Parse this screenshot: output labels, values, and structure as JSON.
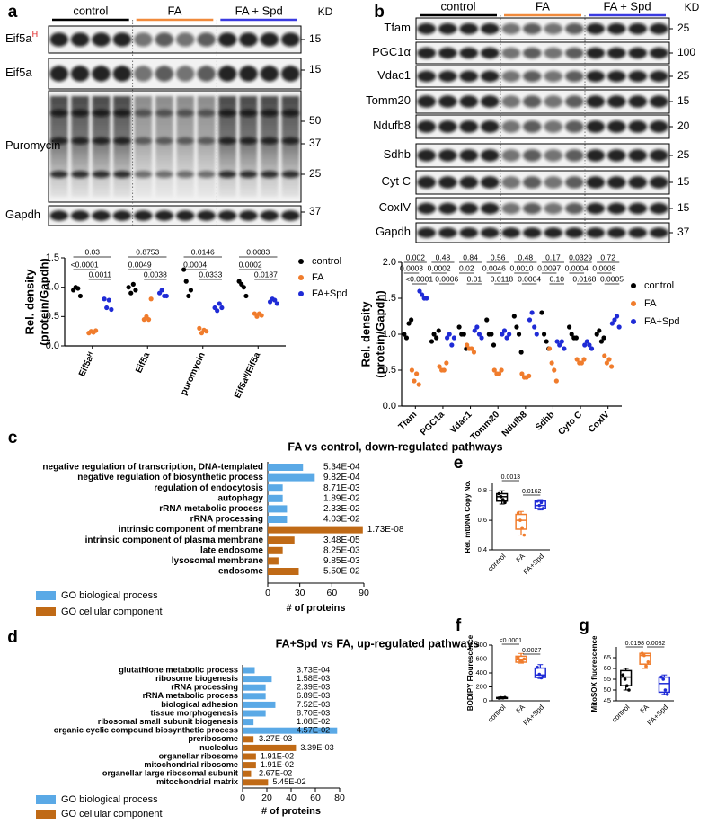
{
  "blots": [
    {
      "label": "a",
      "kd_header": "KD",
      "groups": [
        {
          "name": "control",
          "color": "#000000"
        },
        {
          "name": "FA",
          "color": "#f08a3c"
        },
        {
          "name": "FA + Spd",
          "color": "#3b3be0"
        }
      ],
      "rows": [
        {
          "name": "Eif5a",
          "sup": "H",
          "kd": [
            "15"
          ]
        },
        {
          "name": "Eif5a",
          "kd": [
            "15"
          ]
        },
        {
          "name": "Puromycin",
          "kd": [
            "50",
            "37",
            "25"
          ]
        },
        {
          "name": "Gapdh",
          "kd": [
            "37"
          ]
        }
      ]
    },
    {
      "label": "b",
      "kd_header": "KD",
      "groups": [
        {
          "name": "control",
          "color": "#000000"
        },
        {
          "name": "FA",
          "color": "#f08a3c"
        },
        {
          "name": "FA + Spd",
          "color": "#3b3be0"
        }
      ],
      "rows": [
        {
          "name": "Tfam",
          "kd": [
            "25"
          ]
        },
        {
          "name": "PGC1α",
          "kd": [
            "100"
          ]
        },
        {
          "name": "Vdac1",
          "kd": [
            "25"
          ]
        },
        {
          "name": "Tomm20",
          "kd": [
            "15"
          ]
        },
        {
          "name": "Ndufb8",
          "kd": [
            "20"
          ]
        },
        {
          "name": "Sdhb",
          "kd": [
            "25"
          ]
        },
        {
          "name": "Cyt C",
          "kd": [
            "15"
          ]
        },
        {
          "name": "CoxIV",
          "kd": [
            "15"
          ]
        },
        {
          "name": "Gapdh",
          "kd": [
            "37"
          ]
        }
      ]
    }
  ],
  "chart_data": [
    {
      "type": "dot",
      "ylabel": [
        "Rel. density",
        "(protein/Gapdh)"
      ],
      "categories": [
        "Eif5aᴴ",
        "Eif5a",
        "puromycin",
        "Eif5aᴴ/Eif5a"
      ],
      "ylim": [
        0,
        1.5
      ],
      "yticks": [
        {
          "value": 0,
          "label": "0.0"
        },
        0.5,
        {
          "value": 1,
          "label": "1.0"
        },
        1.5
      ],
      "series": [
        {
          "name": "control",
          "color": "#000000",
          "values": [
            [
              0.95,
              1.0,
              0.98,
              0.85
            ],
            [
              1.0,
              0.9,
              1.05,
              0.95
            ],
            [
              1.3,
              1.1,
              0.85,
              0.95
            ],
            [
              1.1,
              1.05,
              1.0,
              0.85
            ]
          ]
        },
        {
          "name": "FA",
          "color": "#f07c2c",
          "values": [
            [
              0.22,
              0.25,
              0.23,
              0.26
            ],
            [
              0.45,
              0.5,
              0.45,
              0.8
            ],
            [
              0.3,
              0.22,
              0.27,
              0.25
            ],
            [
              0.55,
              0.5,
              0.55,
              0.52
            ]
          ]
        },
        {
          "name": "FA+Spd",
          "color": "#1f2bd6",
          "values": [
            [
              0.8,
              0.65,
              0.78,
              0.62
            ],
            [
              0.9,
              0.95,
              0.85,
              0.85
            ],
            [
              0.65,
              0.6,
              0.72,
              0.65
            ],
            [
              0.75,
              0.8,
              0.78,
              0.72
            ]
          ]
        }
      ],
      "pvalues": [
        [
          "0.03",
          "<0.0001",
          "0.0011"
        ],
        [
          "0.8753",
          "0.0049",
          "0.0038"
        ],
        [
          "0.0146",
          "0.0004",
          "0.0333"
        ],
        [
          "0.0083",
          "0.0002",
          "0.0187"
        ]
      ]
    },
    {
      "type": "dot",
      "ylabel": [
        "Rel. density",
        "(protein/Gapdh)"
      ],
      "categories": [
        "Tfam",
        "PGC1a",
        "Vdac1",
        "Tomm20",
        "Ndufb8",
        "Sdhb",
        "Cyto C",
        "CoxIV"
      ],
      "ylim": [
        0,
        2
      ],
      "yticks": [
        {
          "value": 0,
          "label": "0.0"
        },
        0.5,
        {
          "value": 1,
          "label": "1.0"
        },
        1.5,
        {
          "value": 2,
          "label": "2.0"
        }
      ],
      "series": [
        {
          "name": "control",
          "color": "#000000",
          "values": [
            [
              1.0,
              0.95,
              1.15,
              1.2
            ],
            [
              0.9,
              1.0,
              0.95,
              1.05
            ],
            [
              1.1,
              1.0,
              1.0,
              0.8
            ],
            [
              1.2,
              1.0,
              1.0,
              0.85
            ],
            [
              1.25,
              1.1,
              1.0,
              0.75
            ],
            [
              1.3,
              1.0,
              0.9,
              0.8
            ],
            [
              1.1,
              1.0,
              0.95,
              0.95
            ],
            [
              1.0,
              1.05,
              0.9,
              0.95
            ]
          ]
        },
        {
          "name": "FA",
          "color": "#f07c2c",
          "values": [
            [
              0.5,
              0.35,
              0.45,
              0.3
            ],
            [
              0.55,
              0.5,
              0.5,
              0.6
            ],
            [
              0.85,
              0.8,
              0.8,
              0.75
            ],
            [
              0.5,
              0.45,
              0.45,
              0.5
            ],
            [
              0.45,
              0.4,
              0.4,
              0.42
            ],
            [
              0.8,
              0.6,
              0.5,
              0.35
            ],
            [
              0.65,
              0.6,
              0.6,
              0.65
            ],
            [
              0.7,
              0.6,
              0.65,
              0.55
            ]
          ]
        },
        {
          "name": "FA+Spd",
          "color": "#1f2bd6",
          "values": [
            [
              1.6,
              1.55,
              1.5,
              1.5
            ],
            [
              0.95,
              1.0,
              0.85,
              0.95
            ],
            [
              1.05,
              1.1,
              1.0,
              0.95
            ],
            [
              1.0,
              1.05,
              0.95,
              1.0
            ],
            [
              1.2,
              1.3,
              1.1,
              1.0
            ],
            [
              0.9,
              0.85,
              0.9,
              0.8
            ],
            [
              0.85,
              0.9,
              0.85,
              0.8
            ],
            [
              1.15,
              1.2,
              1.25,
              1.1
            ]
          ]
        }
      ],
      "pvalues": [
        [
          "0.002",
          "0.0003",
          "<0.0001"
        ],
        [
          "0.48",
          "0.0002",
          "0.0006"
        ],
        [
          "0.84",
          "0.02",
          "0.01"
        ],
        [
          "0.56",
          "0.0046",
          "0.0118"
        ],
        [
          "0.48",
          "0.0010",
          "0.0004"
        ],
        [
          "0.17",
          "0.0097",
          "0.10"
        ],
        [
          "0.0329",
          "0.0004",
          "0.0168"
        ],
        [
          "0.72",
          "0.0008",
          "0.0005"
        ]
      ]
    },
    {
      "type": "hbar",
      "panel": "c",
      "title": "FA vs control, down-regulated pathways",
      "xlabel": "# of proteins",
      "categories": [
        "negative regulation of transcription, DNA-templated",
        "negative regulation of biosynthetic process",
        "regulation of endocytosis",
        "autophagy",
        "rRNA metabolic process",
        "rRNA processing",
        "intrinsic component of membrane",
        "intrinsic component of plasma membrane",
        "late endosome",
        "lysosomal membrane",
        "endosome"
      ],
      "xlim": [
        0,
        90
      ],
      "xticks": [
        0,
        30,
        60,
        90
      ],
      "series": [
        {
          "name": "GO biological process",
          "color": "#5aa9e6",
          "values": [
            33,
            44,
            14,
            14,
            18,
            18,
            null,
            null,
            null,
            null,
            null
          ]
        },
        {
          "name": "GO cellular component",
          "color": "#c06a16",
          "values": [
            null,
            null,
            null,
            null,
            null,
            null,
            89,
            25,
            14,
            10,
            29
          ]
        }
      ],
      "annotations": [
        "5.34E-04",
        "9.82E-04",
        "8.71E-03",
        "1.89E-02",
        "2.33E-02",
        "4.03E-02",
        "1.73E-08",
        "3.48E-05",
        "8.25E-03",
        "9.85E-03",
        "5.50E-02"
      ]
    },
    {
      "type": "hbar",
      "panel": "d",
      "title": "FA+Spd vs FA, up-regulated pathways",
      "xlabel": "# of proteins",
      "categories": [
        "glutathione metabolic process",
        "ribosome biogenesis",
        "rRNA processing",
        "rRNA metabolic process",
        "biological adhesion",
        "tissue morphogenesis",
        "ribosomal small subunit biogenesis",
        "organic cyclic compound biosynthetic process",
        "preribosome",
        "nucleolus",
        "organellar ribosome",
        "mitochondrial ribosome",
        "organellar large ribosomal subunit",
        "mitochondrial matrix"
      ],
      "xlim": [
        0,
        80
      ],
      "xticks": [
        0,
        20,
        40,
        60,
        80
      ],
      "series": [
        {
          "name": "GO biological process",
          "color": "#5aa9e6",
          "values": [
            10,
            24,
            19,
            19,
            27,
            19,
            9,
            78,
            null,
            null,
            null,
            null,
            null,
            null
          ]
        },
        {
          "name": "GO cellular component",
          "color": "#c06a16",
          "values": [
            null,
            null,
            null,
            null,
            null,
            null,
            null,
            null,
            9,
            44,
            11,
            11,
            7,
            21
          ]
        }
      ],
      "annotations": [
        "3.73E-04",
        "1.58E-03",
        "2.39E-03",
        "6.89E-03",
        "7.52E-03",
        "8.70E-03",
        "1.08E-02",
        "4.57E-02",
        "3.27E-03",
        "3.39E-03",
        "1.91E-02",
        "1.91E-02",
        "2.67E-02",
        "5.45E-02"
      ]
    },
    {
      "type": "box",
      "panel": "e",
      "ylabel": "Rel. mtDNA Copy No.",
      "categories": [
        "control",
        "FA",
        "FA+Spd"
      ],
      "colors": [
        "#000000",
        "#f07c2c",
        "#1f2bd6"
      ],
      "ylim": [
        0.4,
        0.85
      ],
      "yticks": [
        0.4,
        0.6,
        0.8
      ],
      "boxes": [
        {
          "min": 0.71,
          "q1": 0.73,
          "median": 0.76,
          "q3": 0.78,
          "max": 0.8
        },
        {
          "min": 0.5,
          "q1": 0.54,
          "median": 0.6,
          "q3": 0.64,
          "max": 0.66
        },
        {
          "min": 0.67,
          "q1": 0.68,
          "median": 0.7,
          "q3": 0.73,
          "max": 0.74
        }
      ],
      "points": [
        [
          0.78,
          0.76,
          0.74,
          0.72
        ],
        [
          0.65,
          0.6,
          0.55,
          0.5
        ],
        [
          0.73,
          0.7,
          0.72,
          0.68
        ]
      ],
      "pvalues": [
        "0.0013",
        "0.0162"
      ]
    },
    {
      "type": "box",
      "panel": "f",
      "ylabel": "BODIPY Flourescence",
      "categories": [
        "control",
        "FA",
        "FA+Spd"
      ],
      "colors": [
        "#000000",
        "#f07c2c",
        "#1f2bd6"
      ],
      "ylim": [
        0,
        800
      ],
      "yticks": [
        0,
        200,
        400,
        600,
        800
      ],
      "boxes": [
        {
          "min": 38,
          "q1": 40,
          "median": 44,
          "q3": 47,
          "max": 50
        },
        {
          "min": 540,
          "q1": 555,
          "median": 590,
          "q3": 640,
          "max": 680
        },
        {
          "min": 320,
          "q1": 335,
          "median": 370,
          "q3": 470,
          "max": 520
        }
      ],
      "points": [
        [
          40,
          45,
          42,
          48
        ],
        [
          620,
          580,
          560,
          600
        ],
        [
          480,
          380,
          330,
          350
        ]
      ],
      "pvalues": [
        "<0.0001",
        "0.0027"
      ]
    },
    {
      "type": "box",
      "panel": "g",
      "ylabel": "MitoSOX fluorescence",
      "categories": [
        "control",
        "FA",
        "FA+Spd"
      ],
      "colors": [
        "#000000",
        "#f07c2c",
        "#1f2bd6"
      ],
      "ylim": [
        45,
        70
      ],
      "yticks": [
        45,
        50,
        55,
        60,
        65
      ],
      "boxes": [
        {
          "min": 50,
          "q1": 52,
          "median": 56,
          "q3": 59,
          "max": 60
        },
        {
          "min": 60,
          "q1": 62,
          "median": 66,
          "q3": 67,
          "max": 67
        },
        {
          "min": 48,
          "q1": 49,
          "median": 53,
          "q3": 56,
          "max": 57
        }
      ],
      "points": [
        [
          57,
          55,
          52,
          50
        ],
        [
          67,
          66,
          61,
          63
        ],
        [
          56,
          55,
          50,
          48
        ]
      ],
      "pvalues": [
        "0.0198",
        "0.0082"
      ]
    }
  ]
}
